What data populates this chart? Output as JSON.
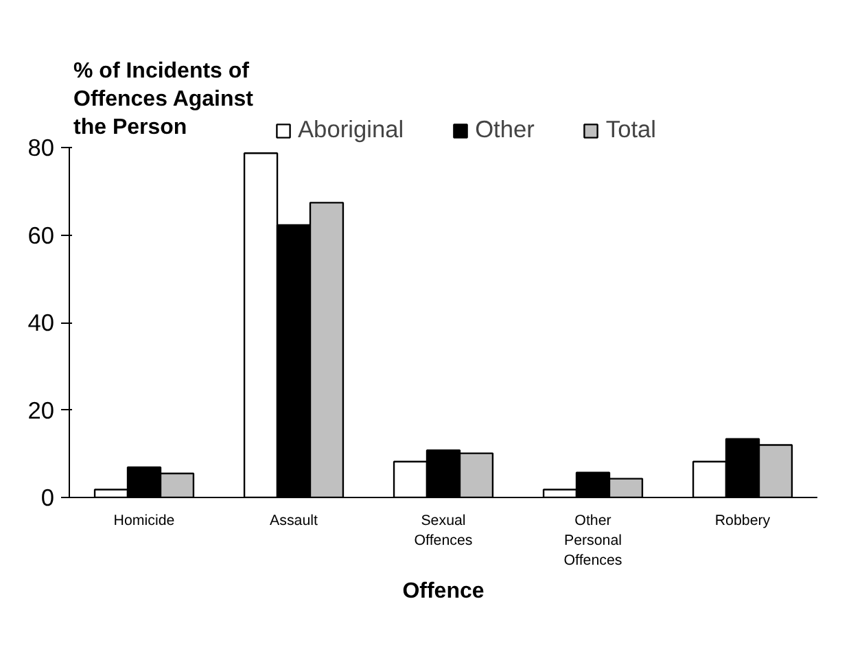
{
  "chart_data": {
    "type": "bar",
    "ylabel": "% of Incidents of Offences Against the Person",
    "xlabel": "Offence",
    "categories": [
      "Homicide",
      "Assault",
      "Sexual Offences",
      "Other Personal Offences",
      "Robbery"
    ],
    "series": [
      {
        "name": "Aboriginal",
        "color": "#ffffff",
        "values": [
          1.8,
          78.7,
          8.2,
          1.8,
          8.2
        ]
      },
      {
        "name": "Other",
        "color": "#000000",
        "values": [
          6.9,
          62.3,
          10.8,
          5.7,
          13.4
        ]
      },
      {
        "name": "Total",
        "color": "#c0c0c0",
        "values": [
          5.5,
          67.4,
          10.1,
          4.3,
          12.0
        ]
      }
    ],
    "ylim": [
      0,
      80
    ],
    "yticks": [
      0,
      20,
      40,
      60,
      80
    ],
    "grid": false,
    "legend": "top"
  }
}
